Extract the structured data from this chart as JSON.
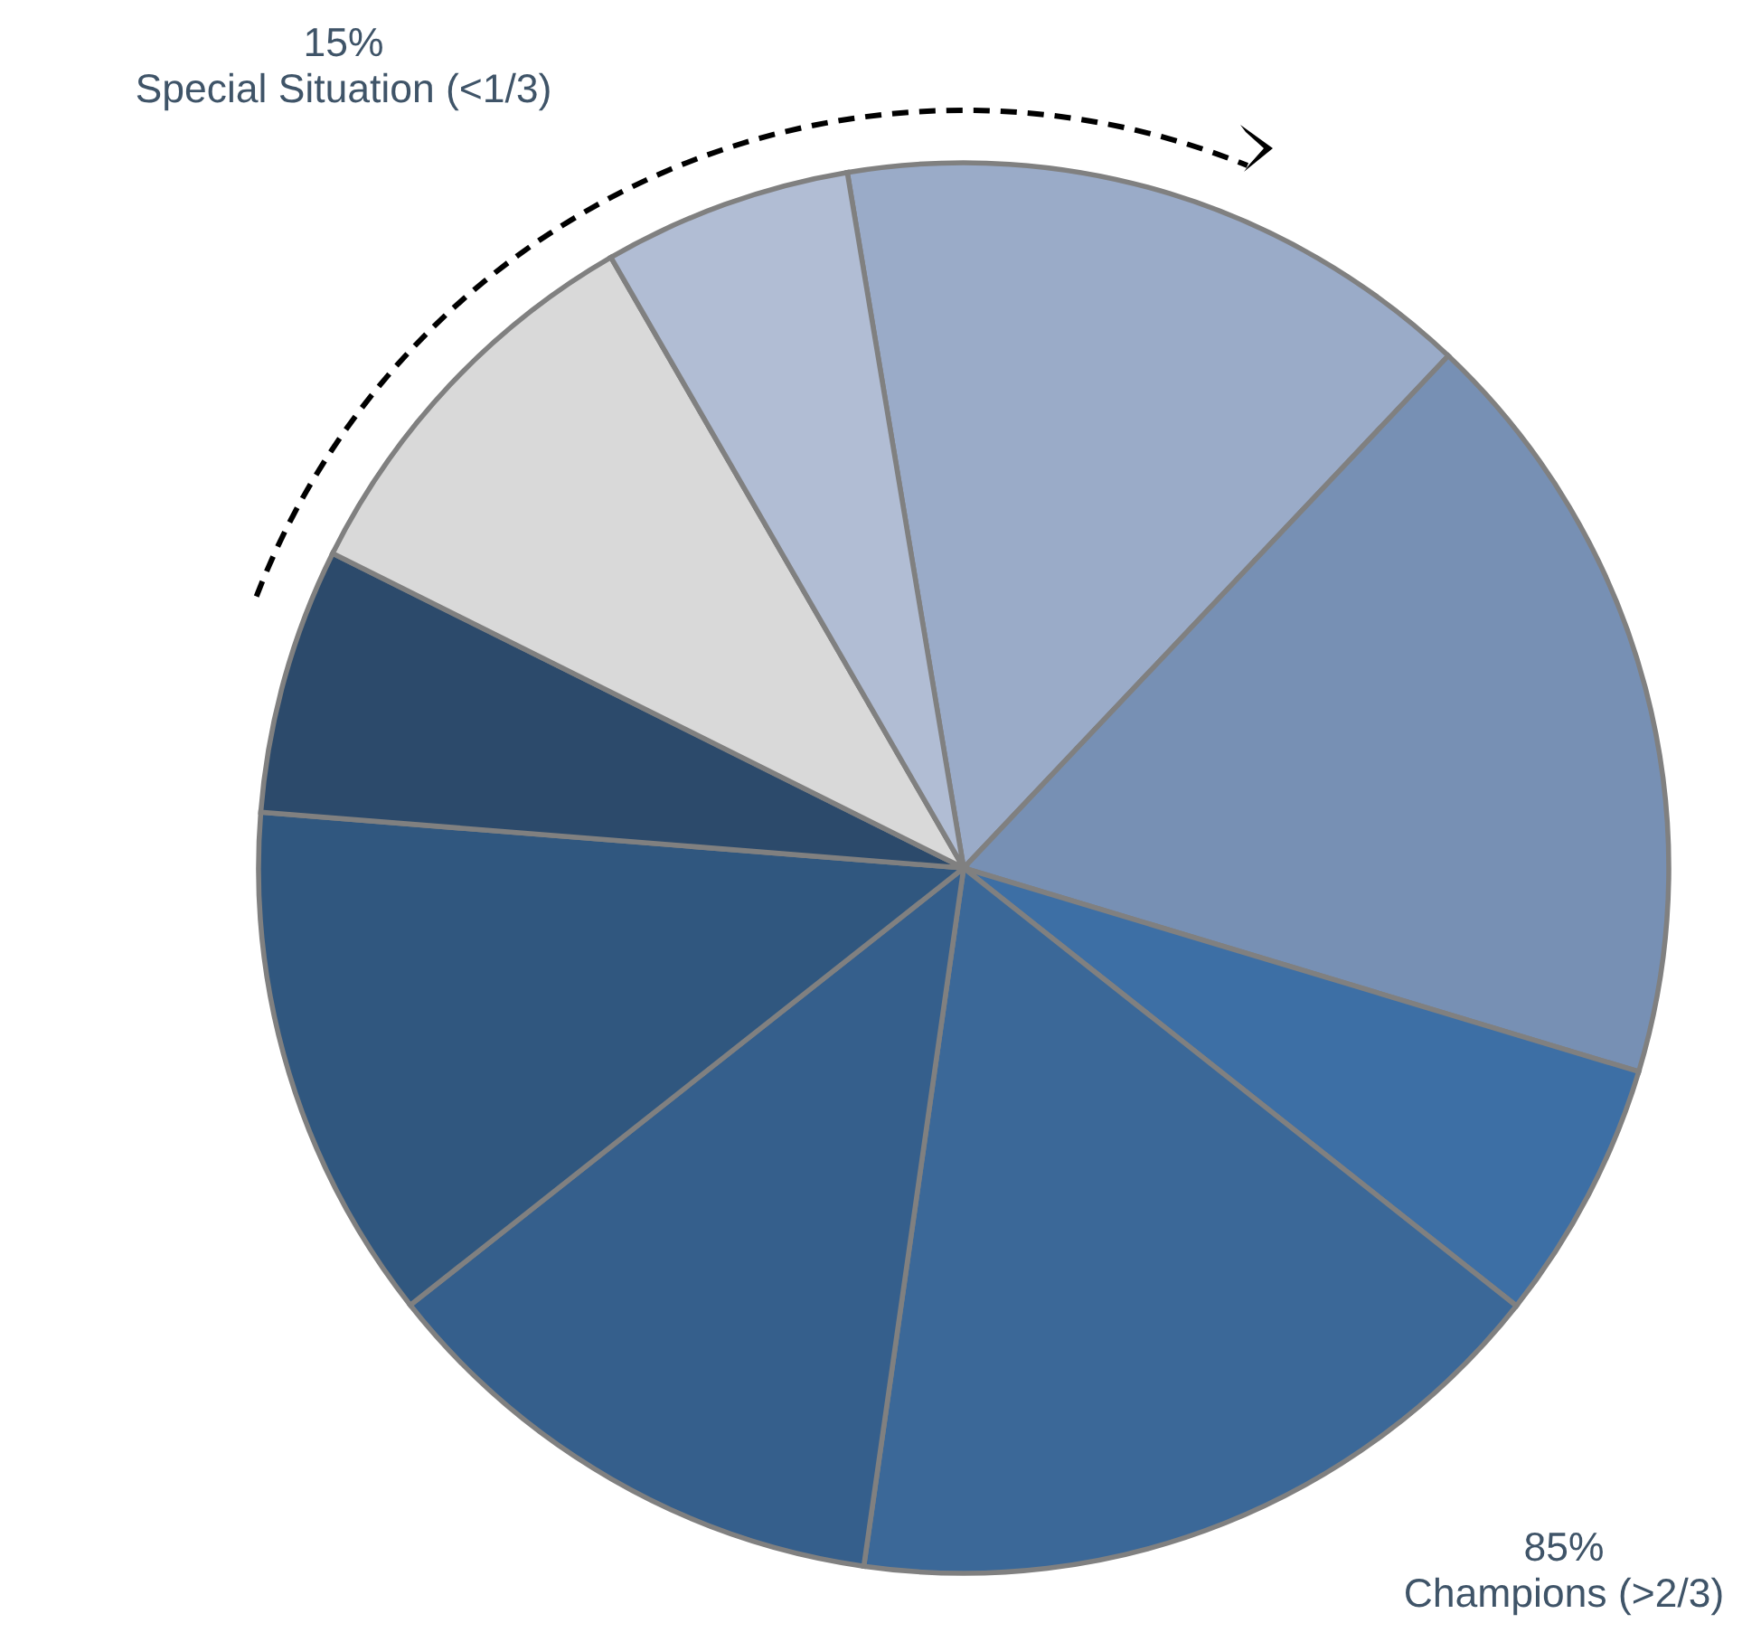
{
  "chart_data": {
    "type": "pie",
    "categories": [
      null,
      null,
      null,
      null,
      null,
      null,
      null,
      null,
      null
    ],
    "values": [
      14.7,
      17.6,
      6.0,
      16.6,
      12.1,
      11.9,
      6.1,
      9.3,
      5.7
    ],
    "colors": [
      "#9aabc8",
      "#7790b4",
      "#3d6fa5",
      "#3b6898",
      "#355f8c",
      "#30577f",
      "#2c4a6b",
      "#d9d9d9",
      "#b1bdd4"
    ],
    "annotations": [
      "15%\nSpecial Situation (<1/3)",
      "85%\nChampions (>2/3)"
    ]
  }
}
